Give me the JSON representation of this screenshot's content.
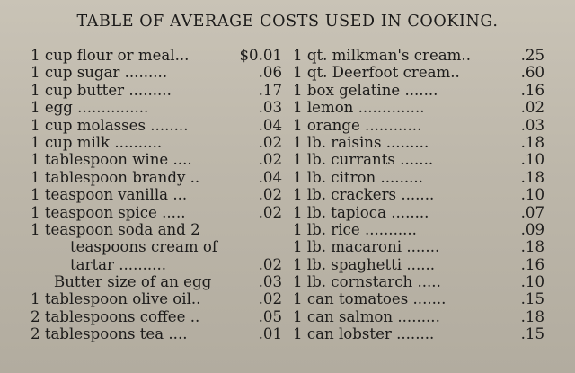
{
  "title": "TABLE OF AVERAGE COSTS USED IN COOKING.",
  "left_column": [
    {
      "label": "1 cup flour or meal...",
      "price": "$0.01"
    },
    {
      "label": "1 cup sugar .........",
      "price": ".06"
    },
    {
      "label": "1 cup butter .........",
      "price": ".17"
    },
    {
      "label": "1 egg ...............",
      "price": ".03"
    },
    {
      "label": "1 cup molasses ........",
      "price": ".04"
    },
    {
      "label": "1 cup milk ..........",
      "price": ".02"
    },
    {
      "label": "1 tablespoon wine ....",
      "price": ".02"
    },
    {
      "label": "1 tablespoon brandy ..",
      "price": ".04"
    },
    {
      "label": "1 teaspoon vanilla ...",
      "price": ".02"
    },
    {
      "label": "1 teaspoon spice .....",
      "price": ".02"
    },
    {
      "label": "1 teaspoon soda and 2",
      "price": ""
    },
    {
      "label": "teaspoons cream of",
      "price": "",
      "indent": "indent"
    },
    {
      "label": "tartar ..........",
      "price": ".02",
      "indent": "indent"
    },
    {
      "label": "Butter size of an egg",
      "price": ".03",
      "indent": "indent-sm"
    },
    {
      "label": "1 tablespoon olive oil..",
      "price": ".02"
    },
    {
      "label": "2 tablespoons coffee ..",
      "price": ".05"
    },
    {
      "label": "2 tablespoons tea ....",
      "price": ".01"
    }
  ],
  "right_column": [
    {
      "label": "1 qt. milkman's cream..",
      "price": ".25"
    },
    {
      "label": "1 qt. Deerfoot cream..",
      "price": ".60"
    },
    {
      "label": "1 box gelatine .......",
      "price": ".16"
    },
    {
      "label": "1 lemon ..............",
      "price": ".02"
    },
    {
      "label": "1 orange ............",
      "price": ".03"
    },
    {
      "label": "1 lb. raisins .........",
      "price": ".18"
    },
    {
      "label": "1 lb. currants .......",
      "price": ".10"
    },
    {
      "label": "1 lb. citron .........",
      "price": ".18"
    },
    {
      "label": "1 lb. crackers .......",
      "price": ".10"
    },
    {
      "label": "1 lb. tapioca ........",
      "price": ".07"
    },
    {
      "label": "1 lb. rice ...........",
      "price": ".09"
    },
    {
      "label": "1 lb. macaroni .......",
      "price": ".18"
    },
    {
      "label": "1 lb. spaghetti ......",
      "price": ".16"
    },
    {
      "label": "1 lb. cornstarch .....",
      "price": ".10"
    },
    {
      "label": "1 can tomatoes .......",
      "price": ".15"
    },
    {
      "label": "1 can salmon .........",
      "price": ".18"
    },
    {
      "label": "1 can lobster ........",
      "price": ".15"
    }
  ]
}
